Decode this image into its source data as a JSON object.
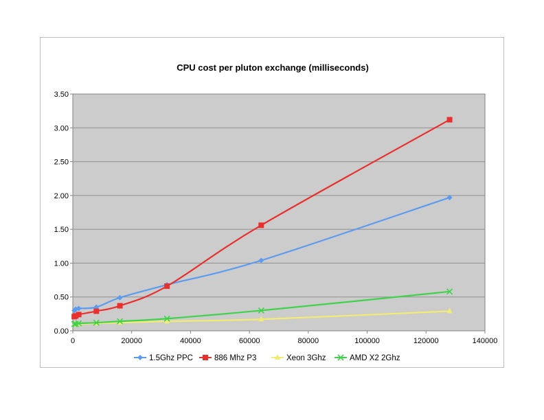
{
  "chart_data": {
    "type": "line",
    "title": "CPU cost per pluton exchange (milliseconds)",
    "xlabel": "",
    "ylabel": "",
    "xlim": [
      0,
      140000
    ],
    "ylim": [
      0,
      3.5
    ],
    "x_ticks": [
      0,
      20000,
      40000,
      60000,
      80000,
      100000,
      120000,
      140000
    ],
    "x_tick_labels": [
      "0",
      "20000",
      "40000",
      "60000",
      "80000",
      "100000",
      "120000",
      "140000"
    ],
    "y_ticks": [
      0,
      0.5,
      1.0,
      1.5,
      2.0,
      2.5,
      3.0,
      3.5
    ],
    "y_tick_labels": [
      "0.00",
      "0.50",
      "1.00",
      "1.50",
      "2.00",
      "2.50",
      "3.00",
      "3.50"
    ],
    "grid": true,
    "legend_position": "bottom",
    "plot_background": "#cccccc",
    "x": [
      500,
      1000,
      2000,
      8000,
      16000,
      32000,
      64000,
      128000
    ],
    "series": [
      {
        "name": "1.5Ghz PPC",
        "color": "#5b9bf0",
        "marker": "diamond",
        "values": [
          0.3,
          0.32,
          0.33,
          0.35,
          0.49,
          0.68,
          1.04,
          1.97
        ]
      },
      {
        "name": "886 Mhz P3",
        "color": "#e8312f",
        "marker": "square",
        "values": [
          0.21,
          0.22,
          0.24,
          0.29,
          0.37,
          0.66,
          1.56,
          3.12
        ]
      },
      {
        "name": "Xeon 3Ghz",
        "color": "#f2ec74",
        "marker": "triangle",
        "values": [
          0.09,
          0.09,
          0.1,
          0.11,
          0.12,
          0.14,
          0.17,
          0.29
        ]
      },
      {
        "name": "AMD X2 2Ghz",
        "color": "#3fd24a",
        "marker": "x",
        "values": [
          0.1,
          0.1,
          0.11,
          0.12,
          0.14,
          0.18,
          0.3,
          0.58
        ]
      }
    ]
  }
}
